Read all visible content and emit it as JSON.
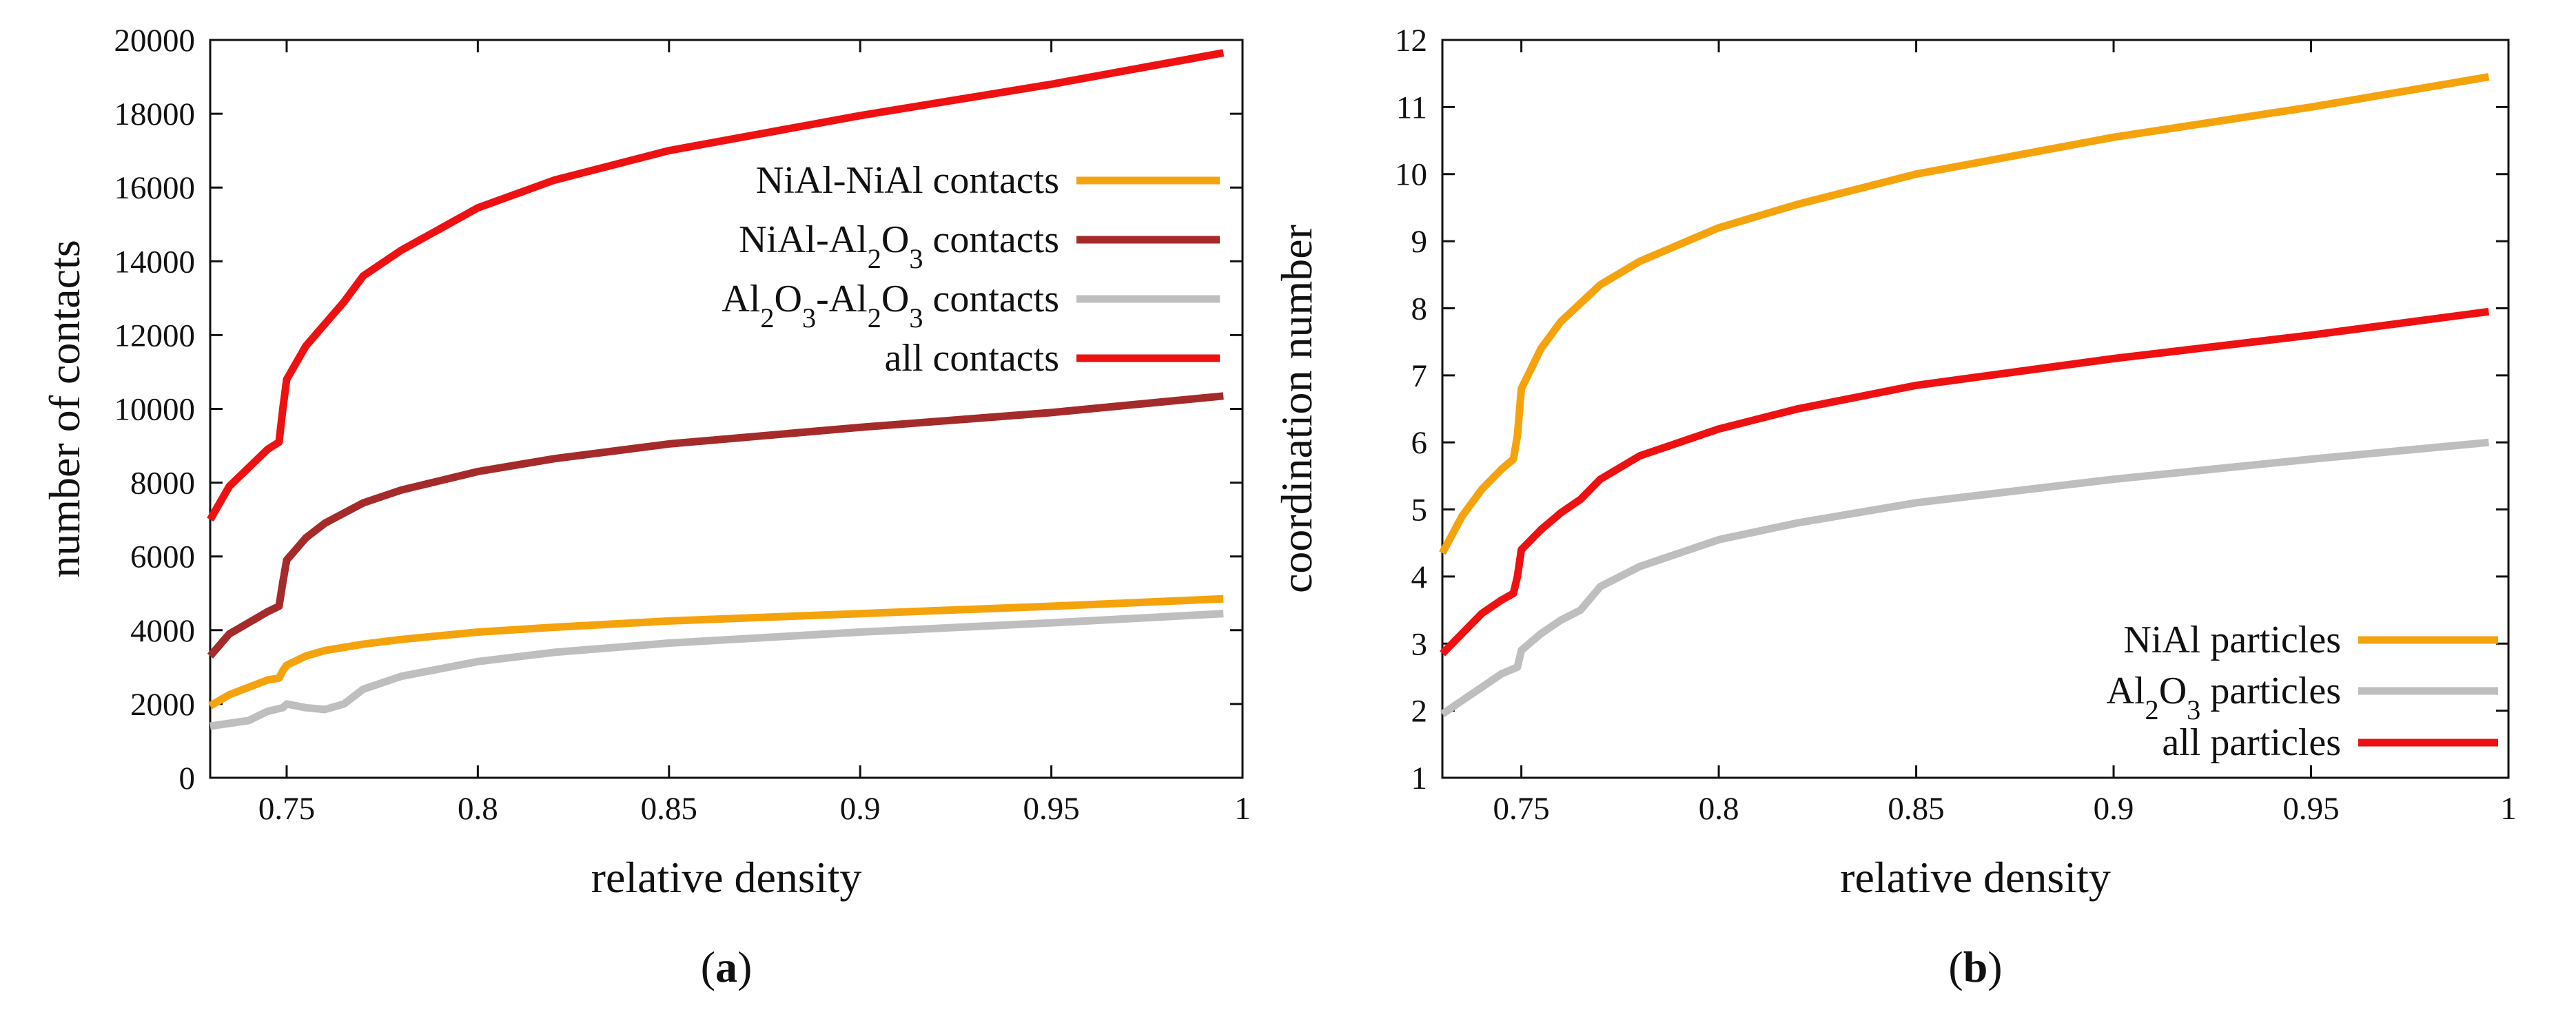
{
  "panels": [
    {
      "label_open": "(",
      "label_letter": "a",
      "label_close": ")"
    },
    {
      "label_open": "(",
      "label_letter": "b",
      "label_close": ")"
    }
  ],
  "chart_data": [
    {
      "type": "line",
      "title": "",
      "xlabel": "relative density",
      "ylabel": "number of contacts",
      "xlim": [
        0.73,
        1.0
      ],
      "ylim": [
        0,
        20000
      ],
      "xticks": [
        0.75,
        0.8,
        0.85,
        0.9,
        0.95,
        1
      ],
      "xtick_labels": [
        "0.75",
        "0.8",
        "0.85",
        "0.9",
        "0.95",
        "1"
      ],
      "yticks": [
        0,
        2000,
        4000,
        6000,
        8000,
        10000,
        12000,
        14000,
        16000,
        18000,
        20000
      ],
      "ytick_labels": [
        "0",
        "2000",
        "4000",
        "6000",
        "8000",
        "10000",
        "12000",
        "14000",
        "16000",
        "18000",
        "20000"
      ],
      "grid": false,
      "legend_position": "right, upper-middle",
      "series": [
        {
          "name": "NiAl-NiAl contacts",
          "legend": {
            "pre": "NiAl-NiAl contacts"
          },
          "color": "#F5A30D",
          "x": [
            0.73,
            0.735,
            0.74,
            0.745,
            0.748,
            0.749,
            0.75,
            0.755,
            0.76,
            0.77,
            0.78,
            0.8,
            0.82,
            0.85,
            0.9,
            0.95,
            0.995
          ],
          "y": [
            1950,
            2250,
            2450,
            2650,
            2700,
            2900,
            3050,
            3300,
            3450,
            3620,
            3750,
            3950,
            4080,
            4250,
            4450,
            4650,
            4850
          ]
        },
        {
          "name": "NiAl-Al2O3 contacts",
          "legend": {
            "pre": "NiAl-Al",
            "sub1": "2",
            "mid": "O",
            "sub2": "3",
            "post": " contacts"
          },
          "color": "#A52A2A",
          "x": [
            0.73,
            0.735,
            0.74,
            0.745,
            0.748,
            0.749,
            0.75,
            0.755,
            0.76,
            0.77,
            0.78,
            0.8,
            0.82,
            0.85,
            0.9,
            0.95,
            0.995
          ],
          "y": [
            3300,
            3900,
            4200,
            4500,
            4650,
            5300,
            5900,
            6500,
            6900,
            7450,
            7800,
            8300,
            8650,
            9050,
            9500,
            9900,
            10350
          ]
        },
        {
          "name": "Al2O3-Al2O3 contacts",
          "legend": {
            "pre": "Al",
            "sub1": "2",
            "mid": "O",
            "sub2": "3",
            "post": "-Al",
            "sub3": "2",
            "mid2": "O",
            "sub4": "3",
            "post2": " contacts"
          },
          "color": "#BEBEBE",
          "x": [
            0.73,
            0.74,
            0.745,
            0.749,
            0.75,
            0.755,
            0.76,
            0.765,
            0.77,
            0.78,
            0.8,
            0.82,
            0.85,
            0.9,
            0.95,
            0.995
          ],
          "y": [
            1400,
            1550,
            1800,
            1900,
            2000,
            1900,
            1850,
            2000,
            2400,
            2750,
            3150,
            3400,
            3650,
            3950,
            4200,
            4450
          ]
        },
        {
          "name": "all contacts",
          "legend": {
            "pre": "all contacts"
          },
          "color": "#EE1111",
          "x": [
            0.73,
            0.735,
            0.74,
            0.745,
            0.748,
            0.749,
            0.75,
            0.755,
            0.76,
            0.765,
            0.77,
            0.78,
            0.8,
            0.82,
            0.85,
            0.9,
            0.95,
            0.995
          ],
          "y": [
            7000,
            7900,
            8400,
            8900,
            9100,
            10000,
            10800,
            11700,
            12300,
            12900,
            13600,
            14300,
            15450,
            16200,
            17000,
            17950,
            18800,
            19650
          ]
        }
      ]
    },
    {
      "type": "line",
      "title": "",
      "xlabel": "relative density",
      "ylabel": "coordination number",
      "xlim": [
        0.73,
        1.0
      ],
      "ylim": [
        1,
        12
      ],
      "xticks": [
        0.75,
        0.8,
        0.85,
        0.9,
        0.95,
        1
      ],
      "xtick_labels": [
        "0.75",
        "0.8",
        "0.85",
        "0.9",
        "0.95",
        "1"
      ],
      "yticks": [
        1,
        2,
        3,
        4,
        5,
        6,
        7,
        8,
        9,
        10,
        11,
        12
      ],
      "ytick_labels": [
        "1",
        "2",
        "3",
        "4",
        "5",
        "6",
        "7",
        "8",
        "9",
        "10",
        "11",
        "12"
      ],
      "grid": false,
      "legend_position": "bottom-right",
      "series": [
        {
          "name": "NiAl particles",
          "legend": {
            "pre": "NiAl particles"
          },
          "color": "#F5A30D",
          "x": [
            0.73,
            0.735,
            0.74,
            0.745,
            0.748,
            0.749,
            0.75,
            0.755,
            0.76,
            0.77,
            0.78,
            0.8,
            0.82,
            0.85,
            0.9,
            0.95,
            0.995
          ],
          "y": [
            4.35,
            4.9,
            5.3,
            5.6,
            5.75,
            6.1,
            6.8,
            7.4,
            7.8,
            8.35,
            8.7,
            9.2,
            9.55,
            10.0,
            10.55,
            11.0,
            11.45
          ]
        },
        {
          "name": "Al2O3 particles",
          "legend": {
            "pre": "Al",
            "sub1": "2",
            "mid": "O",
            "sub2": "3",
            "post": " particles"
          },
          "color": "#BEBEBE",
          "x": [
            0.73,
            0.735,
            0.74,
            0.745,
            0.749,
            0.75,
            0.755,
            0.76,
            0.765,
            0.77,
            0.78,
            0.8,
            0.82,
            0.85,
            0.9,
            0.95,
            0.995
          ],
          "y": [
            1.95,
            2.15,
            2.35,
            2.55,
            2.65,
            2.9,
            3.15,
            3.35,
            3.5,
            3.85,
            4.15,
            4.55,
            4.8,
            5.1,
            5.45,
            5.75,
            6.0
          ]
        },
        {
          "name": "all particles",
          "legend": {
            "pre": "all particles"
          },
          "color": "#EE1111",
          "x": [
            0.73,
            0.735,
            0.74,
            0.745,
            0.748,
            0.749,
            0.75,
            0.755,
            0.76,
            0.765,
            0.77,
            0.78,
            0.8,
            0.82,
            0.85,
            0.9,
            0.95,
            0.995
          ],
          "y": [
            2.85,
            3.15,
            3.45,
            3.65,
            3.75,
            4.0,
            4.4,
            4.7,
            4.95,
            5.15,
            5.45,
            5.8,
            6.2,
            6.5,
            6.85,
            7.25,
            7.6,
            7.95
          ]
        }
      ]
    }
  ]
}
